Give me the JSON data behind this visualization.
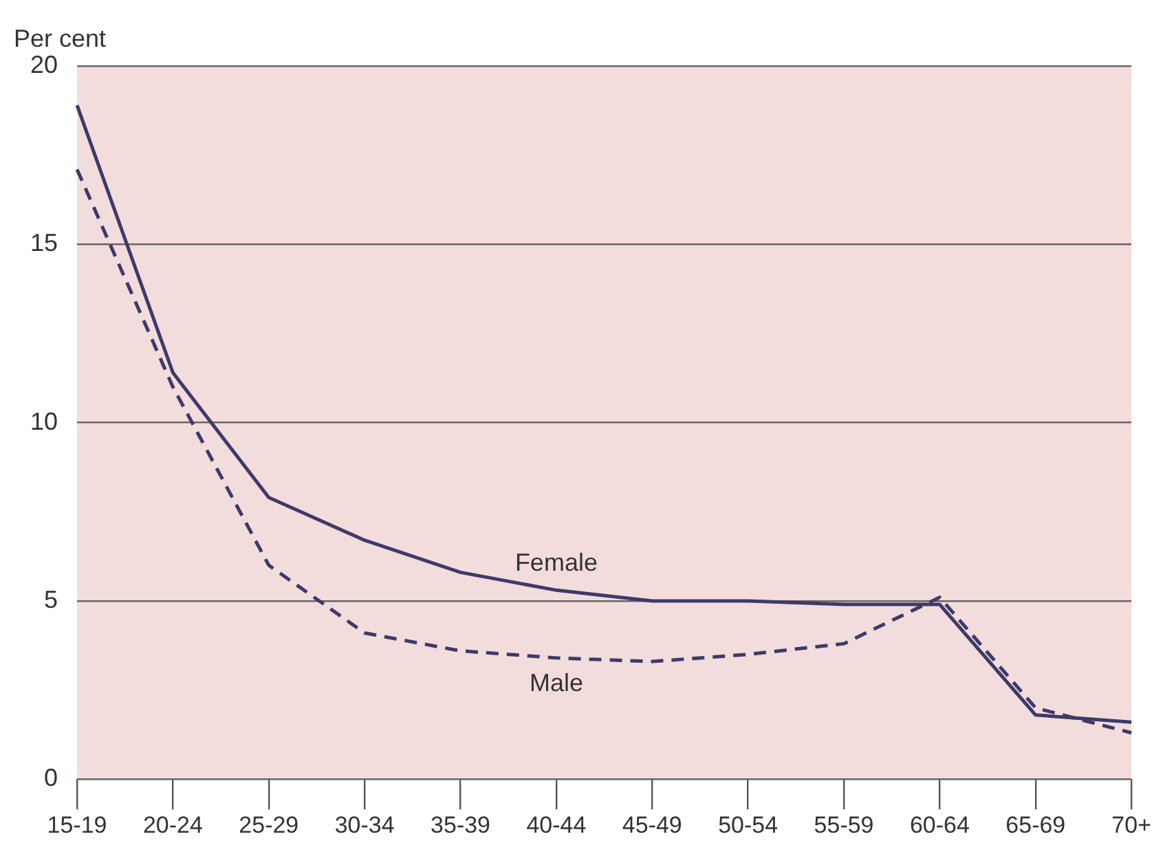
{
  "chart_data": {
    "type": "line",
    "ylabel": "Per cent",
    "categories": [
      "15-19",
      "20-24",
      "25-29",
      "30-34",
      "35-39",
      "40-44",
      "45-49",
      "50-54",
      "55-59",
      "60-64",
      "65-69",
      "70+"
    ],
    "series": [
      {
        "name": "Female",
        "color": "#3d3a6a",
        "line_style": "solid",
        "values": [
          18.9,
          11.4,
          7.9,
          6.7,
          5.8,
          5.3,
          5.0,
          5.0,
          4.9,
          4.9,
          1.8,
          1.6
        ]
      },
      {
        "name": "Male",
        "color": "#3d3a6a",
        "line_style": "dashed",
        "values": [
          17.1,
          11.0,
          6.0,
          4.1,
          3.6,
          3.4,
          3.3,
          3.5,
          3.8,
          5.1,
          2.0,
          1.3
        ]
      }
    ],
    "ylim": [
      0,
      20
    ],
    "yticks": [
      0,
      5,
      10,
      15,
      20
    ],
    "grid": "y",
    "legend": false,
    "marker": "none"
  }
}
